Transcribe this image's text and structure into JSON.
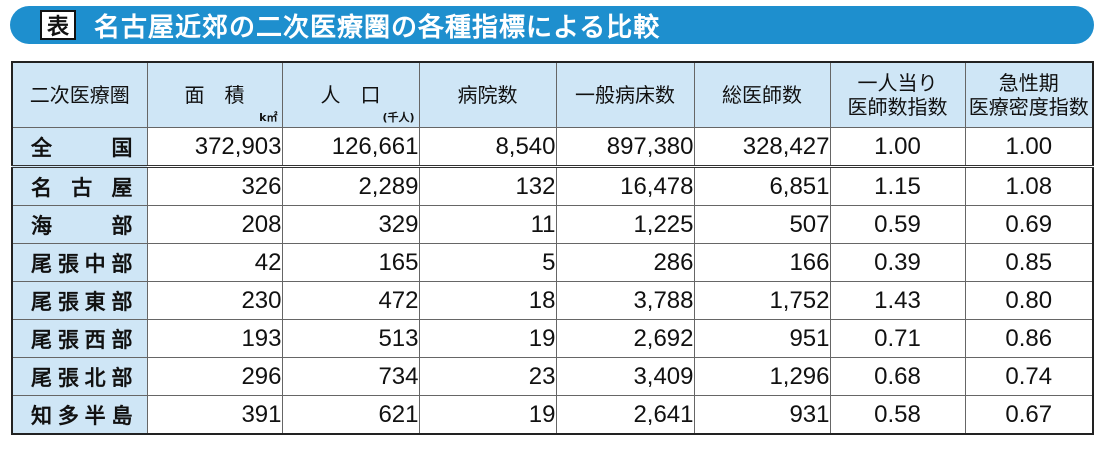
{
  "title": {
    "badge": "表",
    "text": "名古屋近郊の二次医療圏の各種指標による比較"
  },
  "table": {
    "headers": {
      "area_name": "二次医療圏",
      "area": "面　積",
      "area_unit": "k㎡",
      "population": "人　口",
      "population_unit": "(千人)",
      "hospitals": "病院数",
      "beds": "一般病床数",
      "doctors": "総医師数",
      "per_capita_line1": "一人当り",
      "per_capita_line2": "医師数指数",
      "density_line1": "急性期",
      "density_line2": "医療密度指数"
    },
    "rows": [
      {
        "name": "全国",
        "area": "372,903",
        "population": "126,661",
        "hospitals": "8,540",
        "beds": "897,380",
        "doctors": "328,427",
        "per_capita": "1.00",
        "density": "1.00"
      },
      {
        "name": "名古屋",
        "area": "326",
        "population": "2,289",
        "hospitals": "132",
        "beds": "16,478",
        "doctors": "6,851",
        "per_capita": "1.15",
        "density": "1.08"
      },
      {
        "name": "海部",
        "area": "208",
        "population": "329",
        "hospitals": "11",
        "beds": "1,225",
        "doctors": "507",
        "per_capita": "0.59",
        "density": "0.69"
      },
      {
        "name": "尾張中部",
        "area": "42",
        "population": "165",
        "hospitals": "5",
        "beds": "286",
        "doctors": "166",
        "per_capita": "0.39",
        "density": "0.85"
      },
      {
        "name": "尾張東部",
        "area": "230",
        "population": "472",
        "hospitals": "18",
        "beds": "3,788",
        "doctors": "1,752",
        "per_capita": "1.43",
        "density": "0.80"
      },
      {
        "name": "尾張西部",
        "area": "193",
        "population": "513",
        "hospitals": "19",
        "beds": "2,692",
        "doctors": "951",
        "per_capita": "0.71",
        "density": "0.86"
      },
      {
        "name": "尾張北部",
        "area": "296",
        "population": "734",
        "hospitals": "23",
        "beds": "3,409",
        "doctors": "1,296",
        "per_capita": "0.68",
        "density": "0.74"
      },
      {
        "name": "知多半島",
        "area": "391",
        "population": "621",
        "hospitals": "19",
        "beds": "2,641",
        "doctors": "931",
        "per_capita": "0.58",
        "density": "0.67"
      }
    ]
  }
}
